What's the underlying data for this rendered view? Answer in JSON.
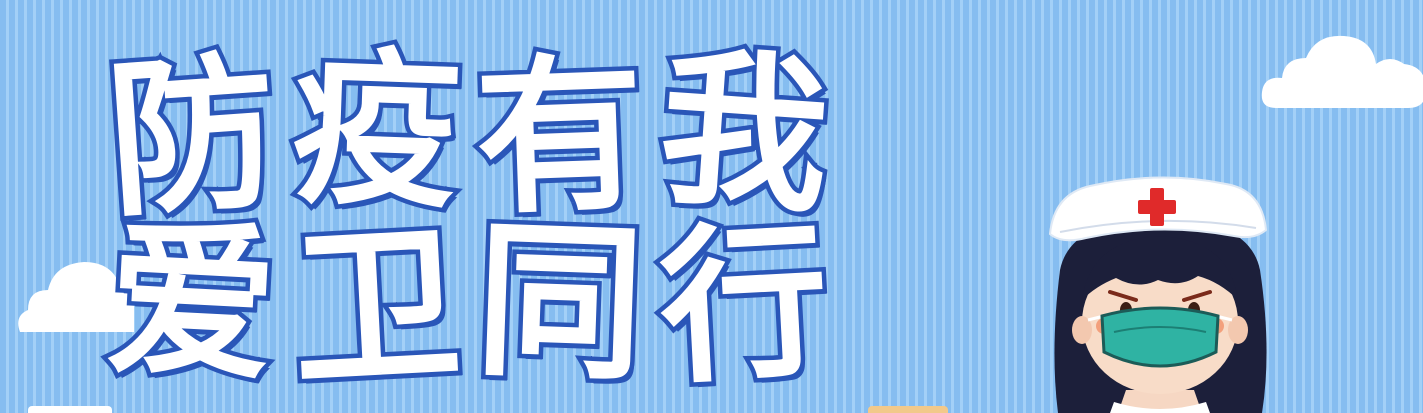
{
  "banner": {
    "title_line1": [
      "防",
      "疫",
      "有",
      "我"
    ],
    "title_line2": [
      "爱",
      "卫",
      "同",
      "行"
    ]
  },
  "icons": [
    "cloud-icon",
    "nurse-illustration",
    "red-cross-icon",
    "face-mask-icon"
  ],
  "colors": {
    "background": "#8ec3f3",
    "stripe": "#a3d0f7",
    "title_fill": "#ffffff",
    "title_outline": "#2a56b8",
    "red_cross": "#e02a2a",
    "mask": "#2fb3a3",
    "hair": "#1c1f3a"
  }
}
